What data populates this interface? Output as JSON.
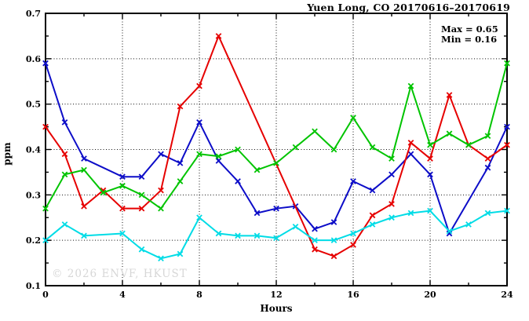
{
  "header": {
    "title": "Yuen Long, CO 20170616–20170619"
  },
  "annotations": {
    "max_label": "Max = 0.65",
    "min_label": "Min = 0.16"
  },
  "watermark": "© 2026 ENVF, HKUST",
  "chart_data": {
    "type": "line",
    "title": "Yuen Long, CO 20170616–20170619",
    "xlabel": "Hours",
    "ylabel": "ppm",
    "xlim": [
      0,
      24
    ],
    "ylim": [
      0.1,
      0.7
    ],
    "grid": "dotted-at-major-ticks",
    "legend_position": "none",
    "x": [
      0,
      1,
      2,
      3,
      4,
      5,
      6,
      7,
      8,
      9,
      10,
      11,
      12,
      13,
      14,
      15,
      16,
      17,
      18,
      19,
      20,
      21,
      22,
      23,
      24
    ],
    "xticks_major": [
      0,
      4,
      8,
      12,
      16,
      20,
      24
    ],
    "xtick_labels": [
      "0",
      "4",
      "8",
      "12",
      "16",
      "20",
      "24"
    ],
    "xticks_minor": [
      2,
      6,
      10,
      14,
      18,
      22
    ],
    "yticks_major": [
      0.1,
      0.2,
      0.3,
      0.4,
      0.5,
      0.6,
      0.7
    ],
    "ytick_labels": [
      "0.1",
      "0.2",
      "0.3",
      "0.4",
      "0.5",
      "0.6",
      "0.7"
    ],
    "yticks_minor": [
      0.15,
      0.25,
      0.35,
      0.45,
      0.55,
      0.65
    ],
    "marker": "x",
    "series": [
      {
        "name": "blue-line",
        "color": "#0d0dc8",
        "values": [
          0.59,
          0.46,
          0.38,
          null,
          0.34,
          0.34,
          0.39,
          0.37,
          0.46,
          0.375,
          0.33,
          0.26,
          0.27,
          0.275,
          0.225,
          0.24,
          0.33,
          0.31,
          0.345,
          0.39,
          0.345,
          0.215,
          null,
          0.36,
          0.45
        ]
      },
      {
        "name": "red-line",
        "color": "#e60000",
        "values": [
          0.45,
          0.39,
          0.275,
          0.31,
          0.27,
          0.27,
          0.31,
          0.495,
          0.54,
          0.65,
          null,
          null,
          null,
          null,
          0.18,
          0.165,
          0.19,
          0.255,
          0.28,
          0.415,
          0.38,
          0.52,
          0.41,
          0.38,
          0.41
        ]
      },
      {
        "name": "green-line",
        "color": "#00c400",
        "values": [
          0.27,
          0.345,
          0.355,
          0.305,
          0.32,
          0.3,
          0.27,
          0.33,
          0.39,
          0.385,
          0.4,
          0.355,
          0.37,
          0.405,
          0.44,
          0.4,
          0.47,
          0.405,
          0.38,
          0.54,
          0.41,
          0.435,
          0.41,
          0.43,
          0.59
        ]
      },
      {
        "name": "cyan-line",
        "color": "#00dce6",
        "values": [
          0.2,
          0.235,
          0.21,
          null,
          0.215,
          0.18,
          0.16,
          0.17,
          0.25,
          0.215,
          0.21,
          0.21,
          0.205,
          0.23,
          0.2,
          0.2,
          0.215,
          0.235,
          0.25,
          0.26,
          0.265,
          0.22,
          0.235,
          0.26,
          0.265
        ]
      }
    ]
  }
}
